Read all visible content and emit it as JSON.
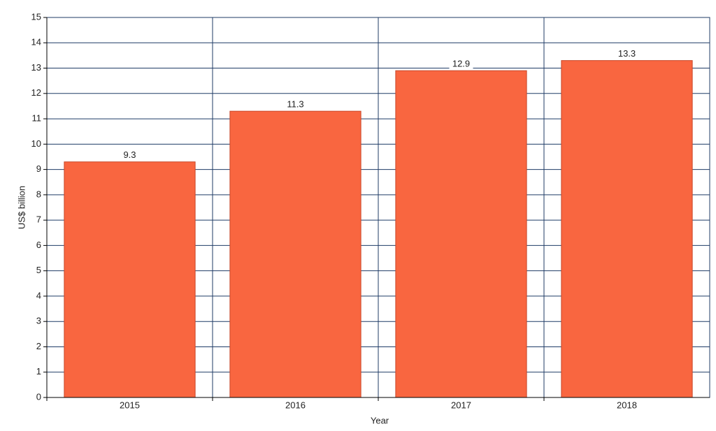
{
  "chart_data": {
    "type": "bar",
    "x_label": "Year",
    "y_label": "US$ billion",
    "categories": [
      "2015",
      "2016",
      "2017",
      "2018"
    ],
    "values": [
      9.3,
      11.3,
      12.9,
      13.3
    ],
    "color": "#f96640",
    "ylim": [
      0,
      15
    ],
    "yticks": [
      0,
      1,
      2,
      3,
      4,
      5,
      6,
      7,
      8,
      9,
      10,
      11,
      12,
      13,
      14,
      15
    ],
    "grid": true
  }
}
